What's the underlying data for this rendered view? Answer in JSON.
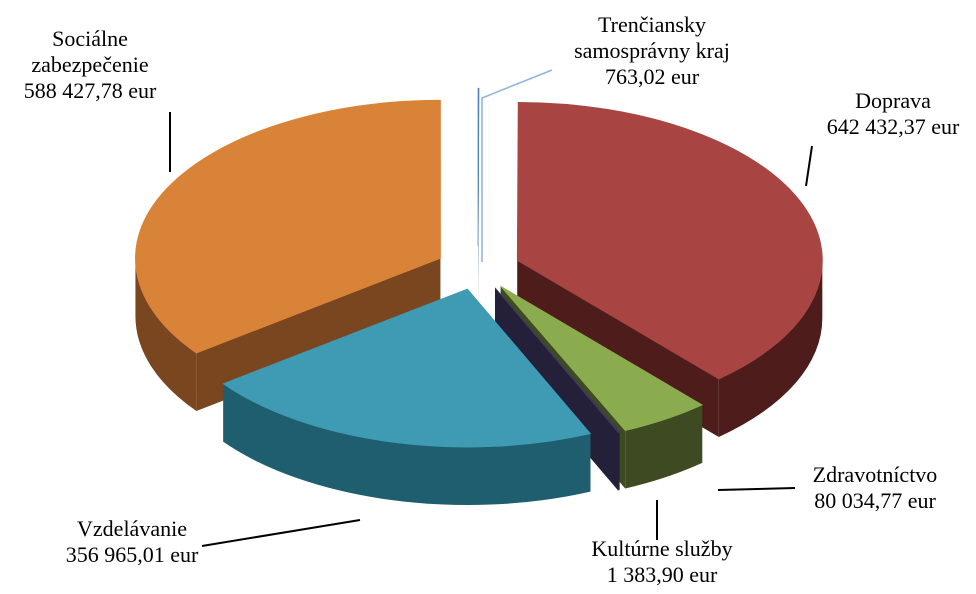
{
  "chart_data": {
    "type": "pie3d",
    "categories": [
      "Trenčiansky samosprávny kraj",
      "Doprava",
      "Zdravotníctvo",
      "Kultúrne služby",
      "Vzdelávanie",
      "Sociálne zabezpečenie"
    ],
    "values": [
      763.02,
      642432.37,
      80034.77,
      1383.9,
      356965.01,
      588427.78
    ],
    "value_labels": [
      "763,02 eur",
      "642 432,37 eur",
      "80 034,77 eur",
      "1 383,90 eur",
      "356 965,01 eur",
      "588 427,78 eur"
    ],
    "colors": [
      "#4f81bd",
      "#a84442",
      "#8aac4e",
      "#3e3760",
      "#3e9bb3",
      "#d98338"
    ],
    "side_colors": [
      "#2c4a70",
      "#4e1c1b",
      "#3d4a22",
      "#24203a",
      "#1f5e6e",
      "#7a4620"
    ]
  }
}
